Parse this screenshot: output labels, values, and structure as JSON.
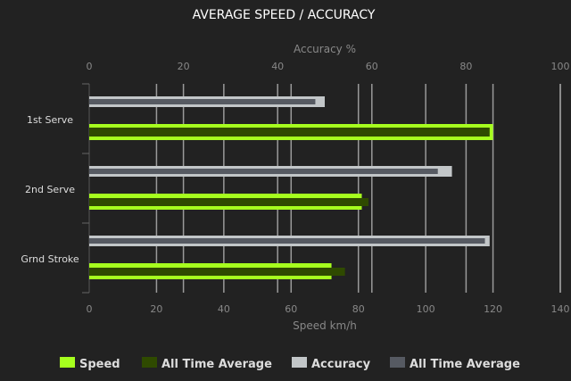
{
  "chart_data": {
    "type": "bar",
    "title": "AVERAGE SPEED / ACCURACY",
    "categories": [
      "1st Serve",
      "2nd Serve",
      "Grnd Stroke"
    ],
    "x_bottom": {
      "label": "Speed km/h",
      "range": [
        0,
        140
      ],
      "ticks": [
        "0",
        "20",
        "40",
        "60",
        "80",
        "100",
        "120",
        "140"
      ]
    },
    "x_top": {
      "label": "Accuracy %",
      "range": [
        0,
        100
      ],
      "ticks": [
        "0",
        "20",
        "40",
        "60",
        "80",
        "100"
      ]
    },
    "grid": true,
    "legend_position": "bottom",
    "series": [
      {
        "name": "Speed",
        "axis": "speed",
        "color": "#a6ff1e",
        "values": [
          120,
          81,
          72
        ]
      },
      {
        "name": "All Time Average",
        "axis": "speed",
        "color": "#2f4a00",
        "values": [
          119,
          83,
          76
        ]
      },
      {
        "name": "Accuracy",
        "axis": "accuracy",
        "color": "#c2c6c8",
        "values": [
          50,
          77,
          85
        ]
      },
      {
        "name": "All Time Average",
        "axis": "accuracy",
        "color": "#565a62",
        "values": [
          48,
          74,
          84
        ]
      }
    ]
  }
}
